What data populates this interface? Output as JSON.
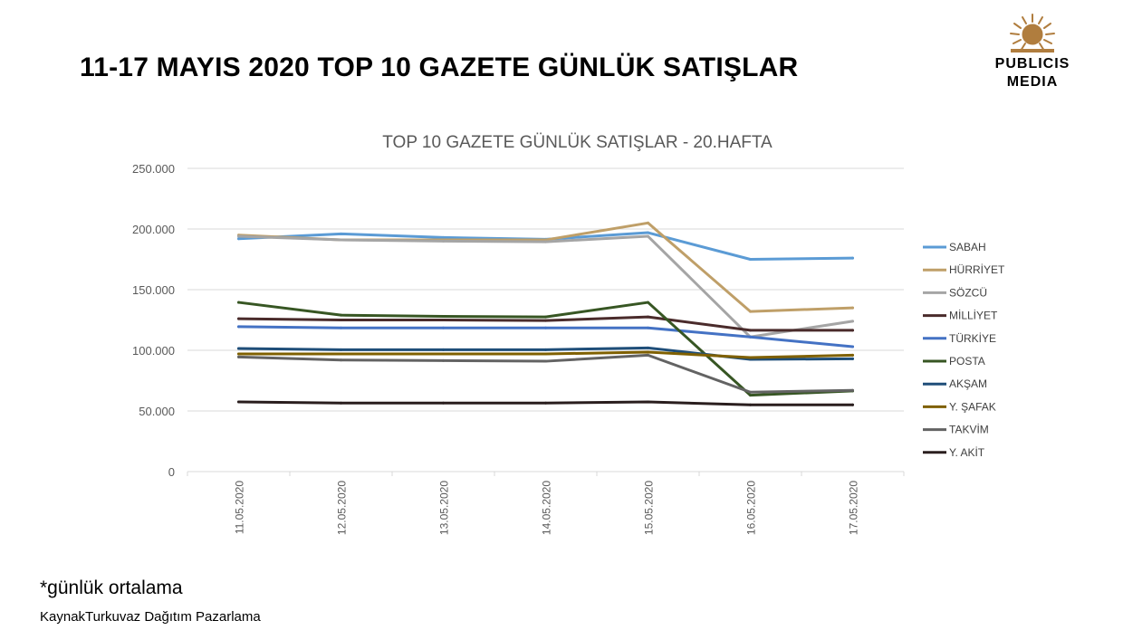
{
  "page": {
    "title": "11-17 MAYIS 2020 TOP 10 GAZETE GÜNLÜK SATIŞLAR",
    "footnote": "*günlük ortalama",
    "source": "KaynakTurkuvaz Dağıtım Pazarlama"
  },
  "logo": {
    "line1": "PUBLICIS",
    "line2": "MEDIA",
    "color": "#b07d3e",
    "icon": "lion-head-icon"
  },
  "chart_data": {
    "type": "line",
    "title": "TOP 10 GAZETE GÜNLÜK SATIŞLAR - 20.HAFTA",
    "xlabel": "",
    "ylabel": "",
    "ylim": [
      0,
      250000
    ],
    "yticks": [
      0,
      50000,
      100000,
      150000,
      200000,
      250000
    ],
    "ytick_labels": [
      "0",
      "50.000",
      "100.000",
      "150.000",
      "200.000",
      "250.000"
    ],
    "grid": true,
    "legend_position": "right",
    "categories": [
      "11.05.2020",
      "12.05.2020",
      "13.05.2020",
      "14.05.2020",
      "15.05.2020",
      "16.05.2020",
      "17.05.2020"
    ],
    "series": [
      {
        "name": "SABAH",
        "color": "#5b9bd5",
        "values": [
          192000,
          196000,
          193000,
          191500,
          197000,
          175000,
          176000
        ]
      },
      {
        "name": "HÜRRİYET",
        "color": "#bf9f68",
        "values": [
          195000,
          191000,
          191000,
          191000,
          205000,
          132000,
          135000
        ]
      },
      {
        "name": "SÖZCÜ",
        "color": "#a5a5a5",
        "values": [
          194000,
          191000,
          190000,
          189500,
          194000,
          111000,
          124000
        ]
      },
      {
        "name": "MİLLİYET",
        "color": "#4a2b2b",
        "values": [
          126000,
          125000,
          125000,
          124500,
          127500,
          116500,
          116500
        ]
      },
      {
        "name": "TÜRKİYE",
        "color": "#4472c4",
        "values": [
          119500,
          118500,
          118500,
          118500,
          118500,
          111000,
          103000
        ]
      },
      {
        "name": "POSTA",
        "color": "#375623",
        "values": [
          139500,
          129000,
          128000,
          127500,
          139500,
          63000,
          66500
        ]
      },
      {
        "name": "AKŞAM",
        "color": "#1f4e79",
        "values": [
          101500,
          100500,
          100500,
          100500,
          102000,
          92500,
          93000
        ]
      },
      {
        "name": "Y. ŞAFAK",
        "color": "#7f6000",
        "values": [
          97000,
          97000,
          97000,
          97000,
          98500,
          94000,
          96000
        ]
      },
      {
        "name": "TAKVİM",
        "color": "#636363",
        "values": [
          94500,
          92000,
          91500,
          91000,
          96000,
          65500,
          67000
        ]
      },
      {
        "name": "Y. AKİT",
        "color": "#2a1e1e",
        "values": [
          57500,
          56500,
          56500,
          56500,
          57500,
          55000,
          55000
        ]
      }
    ]
  }
}
